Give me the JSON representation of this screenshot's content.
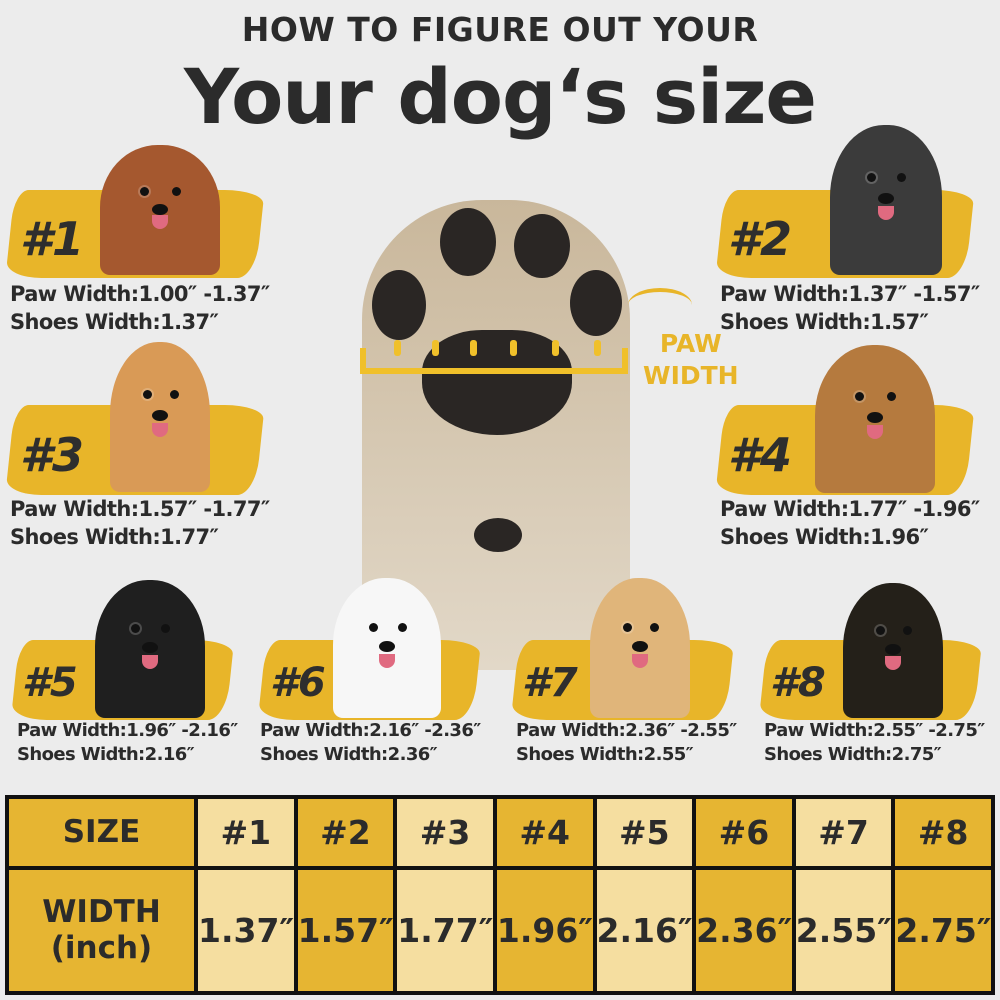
{
  "header": {
    "subtitle": "HOW TO FIGURE OUT YOUR",
    "title": "Your dog‘s size"
  },
  "paw_label": {
    "line1": "PAW",
    "line2": "WIDTH"
  },
  "colors": {
    "accent": "#e8b529",
    "table_dark": "#e6b532",
    "table_light": "#f5dea0",
    "text": "#2b2b2b",
    "background": "#ececec"
  },
  "sizes": [
    {
      "label": "#1",
      "paw": "Paw Width:1.00″ -1.37″",
      "shoes": "Shoes Width:1.37″",
      "dog": "poodle"
    },
    {
      "label": "#2",
      "paw": "Paw Width:1.37″ -1.57″",
      "shoes": "Shoes Width:1.57″",
      "dog": "schnauzer"
    },
    {
      "label": "#3",
      "paw": "Paw Width:1.57″ -1.77″",
      "shoes": "Shoes Width:1.77″",
      "dog": "shiba-inu"
    },
    {
      "label": "#4",
      "paw": "Paw Width:1.77″ -1.96″",
      "shoes": "Shoes Width:1.96″",
      "dog": "beagle"
    },
    {
      "label": "#5",
      "paw": "Paw Width:1.96″ -2.16″",
      "shoes": "Shoes Width:2.16″",
      "dog": "border-collie"
    },
    {
      "label": "#6",
      "paw": "Paw Width:2.16″ -2.36″",
      "shoes": "Shoes Width:2.36″",
      "dog": "samoyed"
    },
    {
      "label": "#7",
      "paw": "Paw Width:2.36″ -2.55″",
      "shoes": "Shoes Width:2.55″",
      "dog": "golden-retriever"
    },
    {
      "label": "#8",
      "paw": "Paw Width:2.55″ -2.75″",
      "shoes": "Shoes Width:2.75″",
      "dog": "rottweiler"
    }
  ],
  "table": {
    "row1_header": "SIZE",
    "row2_header_line1": "WIDTH",
    "row2_header_line2": "(inch)",
    "sizes": [
      "#1",
      "#2",
      "#3",
      "#4",
      "#5",
      "#6",
      "#7",
      "#8"
    ],
    "widths": [
      "1.37″",
      "1.57″",
      "1.77″",
      "1.96″",
      "2.16″",
      "2.36″",
      "2.55″",
      "2.75″"
    ]
  }
}
